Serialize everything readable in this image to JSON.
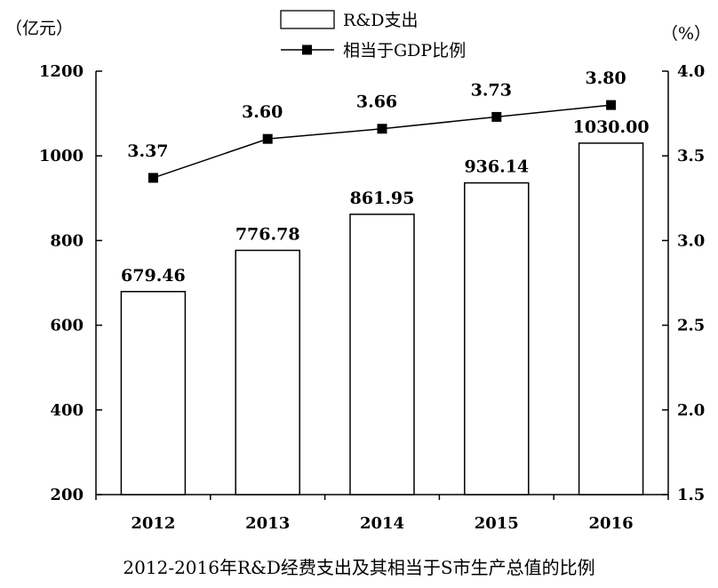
{
  "chart_data": {
    "type": "bar+line",
    "title": "2012-2016年R&D经费支出及其相当于S市生产总值的比例",
    "categories": [
      "2012",
      "2013",
      "2014",
      "2015",
      "2016"
    ],
    "left_axis": {
      "unit": "（亿元）",
      "ylim": [
        200,
        1200
      ],
      "ticks": [
        "200",
        "400",
        "600",
        "800",
        "1000",
        "1200"
      ]
    },
    "right_axis": {
      "unit": "（%）",
      "ylim": [
        1.5,
        4.0
      ],
      "ticks": [
        "1.5",
        "2.0",
        "2.5",
        "3.0",
        "3.5",
        "4.0"
      ]
    },
    "series": [
      {
        "name": "R&D支出",
        "type": "bar",
        "axis": "left",
        "values": [
          679.46,
          776.78,
          861.95,
          936.14,
          1030.0
        ],
        "labels": [
          "679.46",
          "776.78",
          "861.95",
          "936.14",
          "1030.00"
        ]
      },
      {
        "name": "相当于GDP比例",
        "type": "line",
        "axis": "right",
        "values": [
          3.37,
          3.6,
          3.66,
          3.73,
          3.8
        ],
        "labels": [
          "3.37",
          "3.60",
          "3.66",
          "3.73",
          "3.80"
        ]
      }
    ],
    "grid": false,
    "legend_position": "top-center"
  }
}
